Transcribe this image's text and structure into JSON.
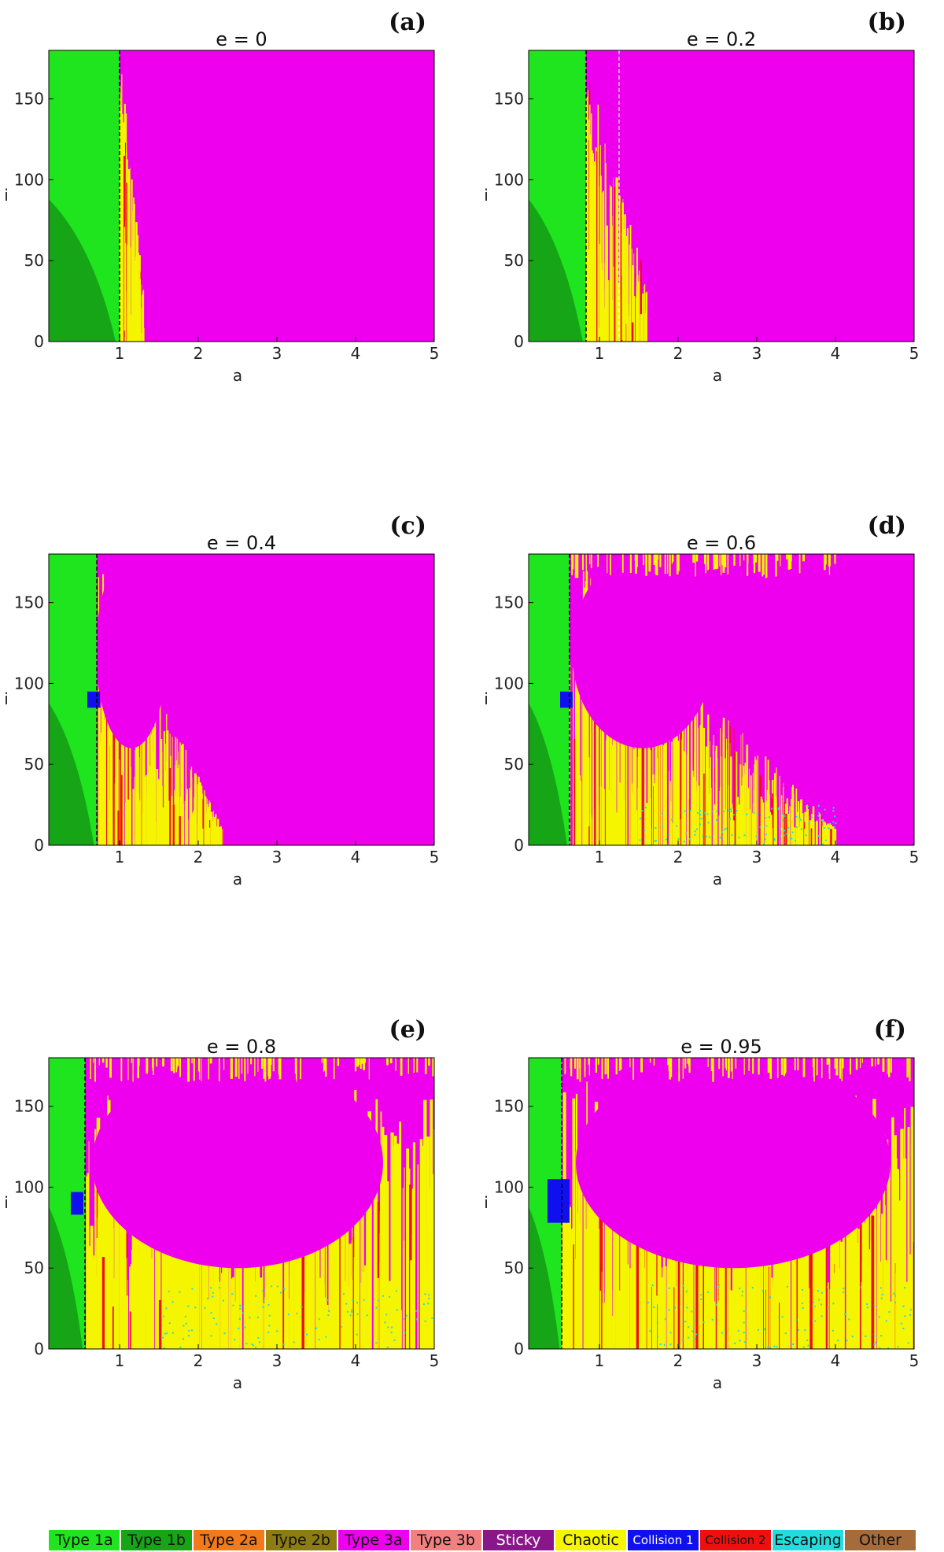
{
  "chart_data": [
    {
      "type": "heatmap",
      "label": "(a)",
      "title": "e = 0",
      "xlabel": "a",
      "ylabel": "i",
      "xlim": [
        0.1,
        5
      ],
      "ylim": [
        0,
        180
      ],
      "xticks": [
        1,
        2,
        3,
        4,
        5
      ],
      "yticks": [
        0,
        50,
        100,
        150
      ],
      "a_boundary": 1.0,
      "chaotic_edge": 1.3,
      "collision_band": null
    },
    {
      "type": "heatmap",
      "label": "(b)",
      "title": "e = 0.2",
      "xlabel": "a",
      "ylabel": "i",
      "xlim": [
        0.1,
        5
      ],
      "ylim": [
        0,
        180
      ],
      "xticks": [
        1,
        2,
        3,
        4,
        5
      ],
      "yticks": [
        0,
        50,
        100,
        150
      ],
      "a_boundary": 0.83,
      "chaotic_edge": 1.6,
      "collision_band": null
    },
    {
      "type": "heatmap",
      "label": "(c)",
      "title": "e = 0.4",
      "xlabel": "a",
      "ylabel": "i",
      "xlim": [
        0.1,
        5
      ],
      "ylim": [
        0,
        180
      ],
      "xticks": [
        1,
        2,
        3,
        4,
        5
      ],
      "yticks": [
        0,
        50,
        100,
        150
      ],
      "a_boundary": 0.71,
      "chaotic_edge": 2.3,
      "collision_band": [
        85,
        95
      ]
    },
    {
      "type": "heatmap",
      "label": "(d)",
      "title": "e = 0.6",
      "xlabel": "a",
      "ylabel": "i",
      "xlim": [
        0.1,
        5
      ],
      "ylim": [
        0,
        180
      ],
      "xticks": [
        1,
        2,
        3,
        4,
        5
      ],
      "yticks": [
        0,
        50,
        100,
        150
      ],
      "a_boundary": 0.62,
      "chaotic_edge": 4.0,
      "collision_band": [
        85,
        95
      ]
    },
    {
      "type": "heatmap",
      "label": "(e)",
      "title": "e = 0.8",
      "xlabel": "a",
      "ylabel": "i",
      "xlim": [
        0.1,
        5
      ],
      "ylim": [
        0,
        180
      ],
      "xticks": [
        1,
        2,
        3,
        4,
        5
      ],
      "yticks": [
        0,
        50,
        100,
        150
      ],
      "a_boundary": 0.56,
      "chaotic_edge": 5.0,
      "collision_band": [
        83,
        97
      ]
    },
    {
      "type": "heatmap",
      "label": "(f)",
      "title": "e = 0.95",
      "xlabel": "a",
      "ylabel": "i",
      "xlim": [
        0.1,
        5
      ],
      "ylim": [
        0,
        180
      ],
      "xticks": [
        1,
        2,
        3,
        4,
        5
      ],
      "yticks": [
        0,
        50,
        100,
        150
      ],
      "a_boundary": 0.52,
      "chaotic_edge": 5.0,
      "collision_band": [
        78,
        105
      ]
    }
  ],
  "legend": [
    {
      "label": "Type 1a",
      "color": "#1ee51e"
    },
    {
      "label": "Type 1b",
      "color": "#16a516"
    },
    {
      "label": "Type 2a",
      "color": "#f27a1a"
    },
    {
      "label": "Type 2b",
      "color": "#8c7c12"
    },
    {
      "label": "Type 3a",
      "color": "#ee00ee"
    },
    {
      "label": "Type 3b",
      "color": "#f28080"
    },
    {
      "label": "Sticky",
      "color": "#8a178a"
    },
    {
      "label": "Chaotic",
      "color": "#f5f500"
    },
    {
      "label": "Collision 1",
      "color": "#1010ee"
    },
    {
      "label": "Collision 2",
      "color": "#ee1010"
    },
    {
      "label": "Escaping",
      "color": "#22dddd"
    },
    {
      "label": "Other",
      "color": "#a66b3a"
    }
  ]
}
